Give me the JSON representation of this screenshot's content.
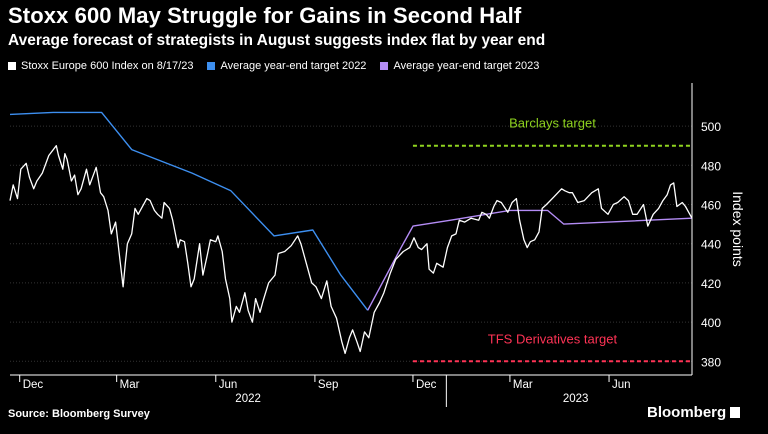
{
  "header": {
    "title": "Stoxx 600 May Struggle for Gains in Second Half",
    "subtitle": "Average forecast of strategists in August suggests index flat by year end"
  },
  "legend": [
    {
      "label": "Stoxx Europe 600 Index on 8/17/23",
      "color": "#ffffff"
    },
    {
      "label": "Average year-end target 2022",
      "color": "#3d8ff0"
    },
    {
      "label": "Average year-end target 2023",
      "color": "#b48cf5"
    }
  ],
  "footer": {
    "source": "Source: Bloomberg Survey",
    "brand": "Bloomberg"
  },
  "chart_data": {
    "type": "line",
    "ylabel": "Index points",
    "ylim": [
      373,
      522
    ],
    "yticks": [
      380,
      400,
      420,
      440,
      460,
      480,
      500
    ],
    "xlim": [
      "2021-11-22",
      "2023-08-17"
    ],
    "month_ticks": [
      {
        "label": "Dec",
        "date": "2021-12-01"
      },
      {
        "label": "Mar",
        "date": "2022-03-01"
      },
      {
        "label": "Jun",
        "date": "2022-06-01"
      },
      {
        "label": "Sep",
        "date": "2022-09-01"
      },
      {
        "label": "Dec",
        "date": "2022-12-01"
      },
      {
        "label": "Mar",
        "date": "2023-03-01"
      },
      {
        "label": "Jun",
        "date": "2023-06-01"
      }
    ],
    "year_labels": [
      {
        "label": "2022",
        "date": "2022-07-01"
      },
      {
        "label": "2023",
        "date": "2023-05-01"
      }
    ],
    "annotations": [
      {
        "label": "Barclays target",
        "value": 490,
        "color": "#8fd41f",
        "start": "2022-12-01",
        "end": "2023-08-17"
      },
      {
        "label": "TFS Derivatives target",
        "value": 380,
        "color": "#ff3355",
        "start": "2022-12-01",
        "end": "2023-08-17"
      }
    ],
    "series": [
      {
        "name": "Stoxx Europe 600 Index on 8/17/23",
        "color": "#ffffff",
        "points": [
          [
            "2021-11-22",
            462
          ],
          [
            "2021-11-25",
            470
          ],
          [
            "2021-11-29",
            463
          ],
          [
            "2021-12-02",
            478
          ],
          [
            "2021-12-07",
            481
          ],
          [
            "2021-12-10",
            474
          ],
          [
            "2021-12-14",
            468
          ],
          [
            "2021-12-17",
            472
          ],
          [
            "2021-12-22",
            476
          ],
          [
            "2021-12-28",
            485
          ],
          [
            "2022-01-04",
            490
          ],
          [
            "2022-01-06",
            485
          ],
          [
            "2022-01-10",
            478
          ],
          [
            "2022-01-12",
            486
          ],
          [
            "2022-01-14",
            483
          ],
          [
            "2022-01-18",
            472
          ],
          [
            "2022-01-21",
            475
          ],
          [
            "2022-01-24",
            465
          ],
          [
            "2022-01-27",
            468
          ],
          [
            "2022-02-01",
            478
          ],
          [
            "2022-02-04",
            470
          ],
          [
            "2022-02-10",
            479
          ],
          [
            "2022-02-14",
            466
          ],
          [
            "2022-02-17",
            464
          ],
          [
            "2022-02-21",
            457
          ],
          [
            "2022-02-24",
            445
          ],
          [
            "2022-02-28",
            451
          ],
          [
            "2022-03-04",
            432
          ],
          [
            "2022-03-07",
            418
          ],
          [
            "2022-03-09",
            430
          ],
          [
            "2022-03-11",
            440
          ],
          [
            "2022-03-15",
            445
          ],
          [
            "2022-03-18",
            458
          ],
          [
            "2022-03-21",
            455
          ],
          [
            "2022-03-24",
            458
          ],
          [
            "2022-03-29",
            463
          ],
          [
            "2022-04-01",
            462
          ],
          [
            "2022-04-05",
            457
          ],
          [
            "2022-04-08",
            455
          ],
          [
            "2022-04-12",
            453
          ],
          [
            "2022-04-14",
            461
          ],
          [
            "2022-04-19",
            458
          ],
          [
            "2022-04-22",
            452
          ],
          [
            "2022-04-27",
            438
          ],
          [
            "2022-04-29",
            442
          ],
          [
            "2022-05-03",
            441
          ],
          [
            "2022-05-06",
            430
          ],
          [
            "2022-05-09",
            418
          ],
          [
            "2022-05-12",
            422
          ],
          [
            "2022-05-17",
            440
          ],
          [
            "2022-05-20",
            424
          ],
          [
            "2022-05-24",
            434
          ],
          [
            "2022-05-27",
            442
          ],
          [
            "2022-06-01",
            441
          ],
          [
            "2022-06-03",
            444
          ],
          [
            "2022-06-07",
            436
          ],
          [
            "2022-06-10",
            422
          ],
          [
            "2022-06-14",
            412
          ],
          [
            "2022-06-16",
            400
          ],
          [
            "2022-06-20",
            408
          ],
          [
            "2022-06-23",
            405
          ],
          [
            "2022-06-28",
            415
          ],
          [
            "2022-07-01",
            406
          ],
          [
            "2022-07-05",
            400
          ],
          [
            "2022-07-08",
            412
          ],
          [
            "2022-07-12",
            405
          ],
          [
            "2022-07-15",
            411
          ],
          [
            "2022-07-20",
            420
          ],
          [
            "2022-07-26",
            424
          ],
          [
            "2022-07-29",
            435
          ],
          [
            "2022-08-04",
            436
          ],
          [
            "2022-08-10",
            439
          ],
          [
            "2022-08-16",
            444
          ],
          [
            "2022-08-19",
            440
          ],
          [
            "2022-08-24",
            430
          ],
          [
            "2022-08-29",
            420
          ],
          [
            "2022-09-02",
            418
          ],
          [
            "2022-09-07",
            412
          ],
          [
            "2022-09-12",
            421
          ],
          [
            "2022-09-16",
            408
          ],
          [
            "2022-09-21",
            402
          ],
          [
            "2022-09-26",
            390
          ],
          [
            "2022-09-29",
            384
          ],
          [
            "2022-10-03",
            392
          ],
          [
            "2022-10-06",
            396
          ],
          [
            "2022-10-10",
            390
          ],
          [
            "2022-10-13",
            385
          ],
          [
            "2022-10-17",
            395
          ],
          [
            "2022-10-21",
            392
          ],
          [
            "2022-10-26",
            405
          ],
          [
            "2022-10-31",
            410
          ],
          [
            "2022-11-04",
            415
          ],
          [
            "2022-11-10",
            425
          ],
          [
            "2022-11-15",
            432
          ],
          [
            "2022-11-22",
            436
          ],
          [
            "2022-11-28",
            438
          ],
          [
            "2022-12-02",
            443
          ],
          [
            "2022-12-06",
            438
          ],
          [
            "2022-12-09",
            437
          ],
          [
            "2022-12-14",
            440
          ],
          [
            "2022-12-16",
            427
          ],
          [
            "2022-12-20",
            425
          ],
          [
            "2022-12-23",
            430
          ],
          [
            "2022-12-29",
            428
          ],
          [
            "2023-01-02",
            438
          ],
          [
            "2023-01-06",
            444
          ],
          [
            "2023-01-10",
            445
          ],
          [
            "2023-01-13",
            452
          ],
          [
            "2023-01-18",
            451
          ],
          [
            "2023-01-24",
            453
          ],
          [
            "2023-01-31",
            452
          ],
          [
            "2023-02-03",
            456
          ],
          [
            "2023-02-07",
            455
          ],
          [
            "2023-02-10",
            453
          ],
          [
            "2023-02-14",
            459
          ],
          [
            "2023-02-17",
            462
          ],
          [
            "2023-02-21",
            461
          ],
          [
            "2023-02-27",
            456
          ],
          [
            "2023-03-03",
            461
          ],
          [
            "2023-03-07",
            463
          ],
          [
            "2023-03-10",
            452
          ],
          [
            "2023-03-14",
            442
          ],
          [
            "2023-03-17",
            438
          ],
          [
            "2023-03-20",
            441
          ],
          [
            "2023-03-24",
            442
          ],
          [
            "2023-03-28",
            446
          ],
          [
            "2023-03-31",
            458
          ],
          [
            "2023-04-04",
            460
          ],
          [
            "2023-04-11",
            464
          ],
          [
            "2023-04-18",
            468
          ],
          [
            "2023-04-21",
            467
          ],
          [
            "2023-04-25",
            466
          ],
          [
            "2023-04-28",
            466
          ],
          [
            "2023-05-03",
            461
          ],
          [
            "2023-05-09",
            462
          ],
          [
            "2023-05-16",
            466
          ],
          [
            "2023-05-22",
            468
          ],
          [
            "2023-05-25",
            458
          ],
          [
            "2023-05-31",
            455
          ],
          [
            "2023-06-05",
            460
          ],
          [
            "2023-06-09",
            461
          ],
          [
            "2023-06-15",
            464
          ],
          [
            "2023-06-19",
            462
          ],
          [
            "2023-06-23",
            455
          ],
          [
            "2023-06-27",
            455
          ],
          [
            "2023-07-03",
            460
          ],
          [
            "2023-07-07",
            449
          ],
          [
            "2023-07-12",
            455
          ],
          [
            "2023-07-17",
            458
          ],
          [
            "2023-07-21",
            462
          ],
          [
            "2023-07-25",
            465
          ],
          [
            "2023-07-28",
            470
          ],
          [
            "2023-07-31",
            471
          ],
          [
            "2023-08-03",
            459
          ],
          [
            "2023-08-08",
            461
          ],
          [
            "2023-08-11",
            459
          ],
          [
            "2023-08-15",
            455
          ],
          [
            "2023-08-17",
            453
          ]
        ]
      },
      {
        "name": "Average year-end target 2022",
        "color": "#3d8ff0",
        "points": [
          [
            "2021-11-22",
            506
          ],
          [
            "2022-01-01",
            507
          ],
          [
            "2022-02-15",
            507
          ],
          [
            "2022-03-15",
            488
          ],
          [
            "2022-05-10",
            476
          ],
          [
            "2022-06-15",
            467
          ],
          [
            "2022-07-25",
            444
          ],
          [
            "2022-08-30",
            447
          ],
          [
            "2022-09-25",
            424
          ],
          [
            "2022-10-20",
            406
          ]
        ]
      },
      {
        "name": "Average year-end target 2023",
        "color": "#b48cf5",
        "points": [
          [
            "2022-10-20",
            406
          ],
          [
            "2022-11-20",
            438
          ],
          [
            "2022-12-01",
            449
          ],
          [
            "2023-01-05",
            452
          ],
          [
            "2023-03-01",
            457
          ],
          [
            "2023-04-05",
            457
          ],
          [
            "2023-04-20",
            450
          ],
          [
            "2023-08-17",
            453
          ]
        ]
      }
    ]
  }
}
